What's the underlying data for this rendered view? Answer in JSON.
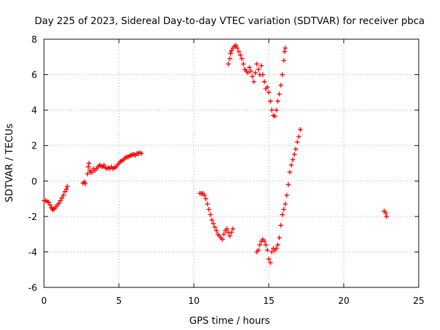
{
  "chart_data": {
    "type": "scatter",
    "title": "Day 225 of 2023, Sidereal Day-to-day VTEC variation (SDTVAR) for receiver pbca",
    "xlabel": "GPS time / hours",
    "ylabel": "SDTVAR / TECUs",
    "xlim": [
      0,
      25
    ],
    "ylim": [
      -6,
      8
    ],
    "xticks": [
      0,
      5,
      10,
      15,
      20,
      25
    ],
    "yticks": [
      -6,
      -4,
      -2,
      0,
      2,
      4,
      6,
      8
    ],
    "grid": true,
    "marker": "+",
    "color": "#ff0000",
    "points": [
      [
        0.0,
        -1.1
      ],
      [
        0.1,
        -1.1
      ],
      [
        0.2,
        -1.15
      ],
      [
        0.3,
        -1.2
      ],
      [
        0.4,
        -1.35
      ],
      [
        0.5,
        -1.5
      ],
      [
        0.55,
        -1.58
      ],
      [
        0.6,
        -1.62
      ],
      [
        0.7,
        -1.55
      ],
      [
        0.8,
        -1.45
      ],
      [
        0.9,
        -1.35
      ],
      [
        1.0,
        -1.25
      ],
      [
        1.1,
        -1.1
      ],
      [
        1.2,
        -0.95
      ],
      [
        1.3,
        -0.8
      ],
      [
        1.4,
        -0.6
      ],
      [
        1.5,
        -0.45
      ],
      [
        1.55,
        -0.3
      ],
      [
        2.6,
        -0.12
      ],
      [
        2.7,
        -0.05
      ],
      [
        2.75,
        -0.15
      ],
      [
        2.9,
        0.4
      ],
      [
        2.95,
        0.8
      ],
      [
        3.0,
        1.0
      ],
      [
        3.05,
        0.6
      ],
      [
        3.1,
        0.5
      ],
      [
        3.2,
        0.5
      ],
      [
        3.3,
        0.7
      ],
      [
        3.4,
        0.6
      ],
      [
        3.5,
        0.7
      ],
      [
        3.6,
        0.8
      ],
      [
        3.7,
        0.9
      ],
      [
        3.8,
        0.85
      ],
      [
        3.9,
        0.8
      ],
      [
        4.0,
        0.9
      ],
      [
        4.1,
        0.75
      ],
      [
        4.2,
        0.7
      ],
      [
        4.3,
        0.75
      ],
      [
        4.4,
        0.7
      ],
      [
        4.5,
        0.8
      ],
      [
        4.6,
        0.7
      ],
      [
        4.7,
        0.75
      ],
      [
        4.8,
        0.8
      ],
      [
        4.9,
        0.9
      ],
      [
        5.0,
        1.0
      ],
      [
        5.1,
        1.1
      ],
      [
        5.2,
        1.15
      ],
      [
        5.3,
        1.2
      ],
      [
        5.4,
        1.3
      ],
      [
        5.5,
        1.35
      ],
      [
        5.6,
        1.35
      ],
      [
        5.7,
        1.4
      ],
      [
        5.8,
        1.45
      ],
      [
        5.9,
        1.5
      ],
      [
        6.0,
        1.5
      ],
      [
        6.1,
        1.45
      ],
      [
        6.2,
        1.55
      ],
      [
        6.3,
        1.55
      ],
      [
        6.4,
        1.6
      ],
      [
        6.5,
        1.55
      ],
      [
        10.4,
        -0.7
      ],
      [
        10.5,
        -0.7
      ],
      [
        10.6,
        -0.7
      ],
      [
        10.7,
        -0.8
      ],
      [
        10.8,
        -1.0
      ],
      [
        10.9,
        -1.3
      ],
      [
        11.0,
        -1.6
      ],
      [
        11.1,
        -1.9
      ],
      [
        11.2,
        -2.2
      ],
      [
        11.3,
        -2.4
      ],
      [
        11.4,
        -2.6
      ],
      [
        11.5,
        -2.8
      ],
      [
        11.6,
        -3.0
      ],
      [
        11.7,
        -3.1
      ],
      [
        11.8,
        -3.2
      ],
      [
        11.9,
        -3.3
      ],
      [
        12.0,
        -3.0
      ],
      [
        12.1,
        -2.8
      ],
      [
        12.2,
        -2.7
      ],
      [
        12.3,
        -2.9
      ],
      [
        12.4,
        -3.1
      ],
      [
        12.5,
        -2.9
      ],
      [
        12.6,
        -2.7
      ],
      [
        12.3,
        6.6
      ],
      [
        12.4,
        6.9
      ],
      [
        12.45,
        7.2
      ],
      [
        12.5,
        7.35
      ],
      [
        12.6,
        7.5
      ],
      [
        12.7,
        7.6
      ],
      [
        12.8,
        7.65
      ],
      [
        12.9,
        7.5
      ],
      [
        13.0,
        7.3
      ],
      [
        13.1,
        7.1
      ],
      [
        13.2,
        6.9
      ],
      [
        13.3,
        6.6
      ],
      [
        13.4,
        6.3
      ],
      [
        13.5,
        6.2
      ],
      [
        13.6,
        6.1
      ],
      [
        13.7,
        6.4
      ],
      [
        13.8,
        6.2
      ],
      [
        13.9,
        5.9
      ],
      [
        14.0,
        5.6
      ],
      [
        14.1,
        6.1
      ],
      [
        14.2,
        6.6
      ],
      [
        14.3,
        6.3
      ],
      [
        14.4,
        6.0
      ],
      [
        14.5,
        6.5
      ],
      [
        14.6,
        6.0
      ],
      [
        14.7,
        5.6
      ],
      [
        14.8,
        5.2
      ],
      [
        14.9,
        5.3
      ],
      [
        15.0,
        5.0
      ],
      [
        15.1,
        4.5
      ],
      [
        15.2,
        4.0
      ],
      [
        15.3,
        3.7
      ],
      [
        15.4,
        3.65
      ],
      [
        15.5,
        4.0
      ],
      [
        15.6,
        4.5
      ],
      [
        15.7,
        4.9
      ],
      [
        15.8,
        5.4
      ],
      [
        15.9,
        6.0
      ],
      [
        16.0,
        6.8
      ],
      [
        16.05,
        7.3
      ],
      [
        16.1,
        7.5
      ],
      [
        14.2,
        -4.0
      ],
      [
        14.3,
        -3.9
      ],
      [
        14.4,
        -3.6
      ],
      [
        14.5,
        -3.4
      ],
      [
        14.6,
        -3.3
      ],
      [
        14.7,
        -3.4
      ],
      [
        14.8,
        -3.6
      ],
      [
        14.9,
        -3.9
      ],
      [
        15.0,
        -4.4
      ],
      [
        15.1,
        -4.6
      ],
      [
        15.2,
        -4.0
      ],
      [
        15.3,
        -3.8
      ],
      [
        15.4,
        -3.9
      ],
      [
        15.5,
        -3.8
      ],
      [
        15.6,
        -3.6
      ],
      [
        15.7,
        -3.2
      ],
      [
        15.8,
        -2.5
      ],
      [
        15.9,
        -1.9
      ],
      [
        16.0,
        -1.6
      ],
      [
        16.1,
        -1.3
      ],
      [
        16.2,
        -0.8
      ],
      [
        16.3,
        -0.2
      ],
      [
        16.4,
        0.5
      ],
      [
        16.5,
        0.9
      ],
      [
        16.6,
        1.2
      ],
      [
        16.7,
        1.5
      ],
      [
        16.8,
        1.8
      ],
      [
        16.9,
        2.2
      ],
      [
        17.0,
        2.5
      ],
      [
        17.1,
        2.9
      ],
      [
        22.7,
        -1.7
      ],
      [
        22.8,
        -1.8
      ],
      [
        22.85,
        -2.0
      ]
    ]
  }
}
